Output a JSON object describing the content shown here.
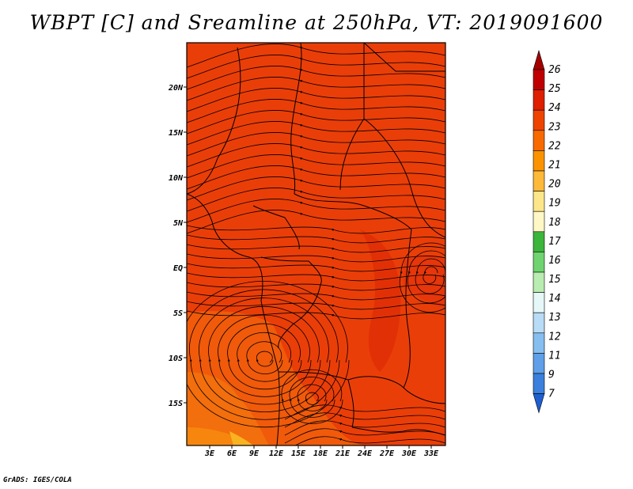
{
  "title": "WBPT [C] and Sreamline at 250hPa, VT: 2019091600",
  "credit": "GrADS: IGES/COLA",
  "map": {
    "lat_labels": [
      "20N",
      "15N",
      "10N",
      "5N",
      "EQ",
      "5S",
      "10S",
      "15S"
    ],
    "lon_labels": [
      "3E",
      "6E",
      "9E",
      "12E",
      "15E",
      "18E",
      "21E",
      "24E",
      "27E",
      "30E",
      "33E"
    ],
    "base_color": "#ea3e08"
  },
  "colorbar": {
    "labels": [
      "26",
      "25",
      "24",
      "23",
      "22",
      "21",
      "20",
      "19",
      "18",
      "17",
      "16",
      "15",
      "14",
      "13",
      "12",
      "11",
      "9",
      "7"
    ],
    "colors": [
      "#a50000",
      "#c00000",
      "#de1f00",
      "#ee4400",
      "#f86a00",
      "#fb9300",
      "#fdb93a",
      "#fde68a",
      "#fff8c6",
      "#3bb53b",
      "#6fd46f",
      "#b9ecb0",
      "#e6f7f7",
      "#b8dcf6",
      "#87bef0",
      "#5e9fe8",
      "#3a80dc",
      "#1e5fd0"
    ]
  }
}
